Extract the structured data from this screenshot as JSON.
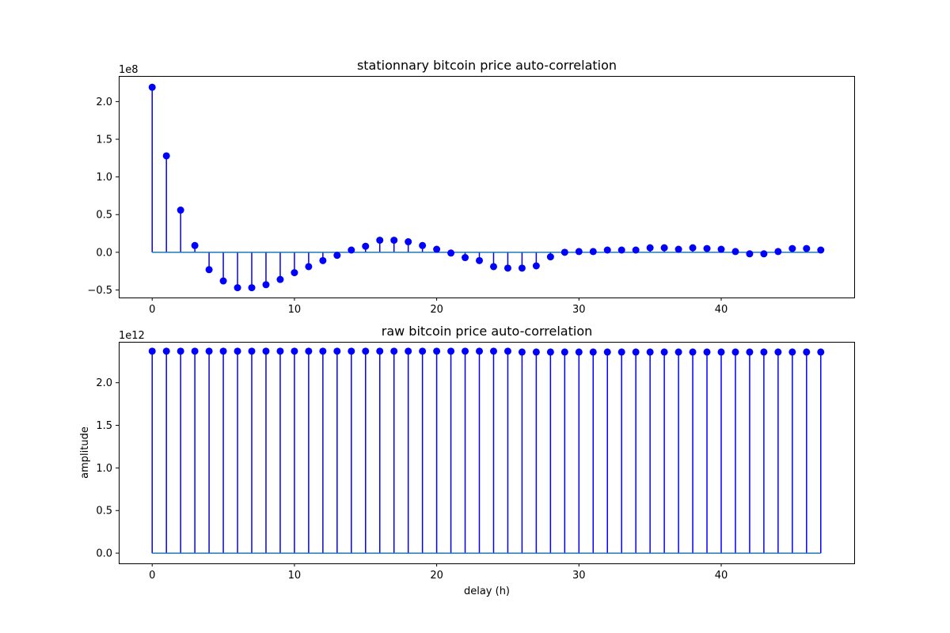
{
  "chart_data": [
    {
      "type": "stem",
      "title": "stationnary bitcoin price auto-correlation",
      "xlabel": "",
      "ylabel": "",
      "offset_text": "1e8",
      "xlim": [
        -2.35,
        49.35
      ],
      "ylim": [
        -0.6,
        2.34
      ],
      "xticks": [
        0,
        10,
        20,
        30,
        40
      ],
      "yticks": [
        -0.5,
        0.0,
        0.5,
        1.0,
        1.5,
        2.0
      ],
      "ytick_labels": [
        "−0.5",
        "0.0",
        "0.5",
        "1.0",
        "1.5",
        "2.0"
      ],
      "x": [
        0,
        1,
        2,
        3,
        4,
        5,
        6,
        7,
        8,
        9,
        10,
        11,
        12,
        13,
        14,
        15,
        16,
        17,
        18,
        19,
        20,
        21,
        22,
        23,
        24,
        25,
        26,
        27,
        28,
        29,
        30,
        31,
        32,
        33,
        34,
        35,
        36,
        37,
        38,
        39,
        40,
        41,
        42,
        43,
        44,
        45,
        46,
        47
      ],
      "values": [
        2.19,
        1.28,
        0.56,
        0.09,
        -0.23,
        -0.38,
        -0.47,
        -0.47,
        -0.43,
        -0.36,
        -0.27,
        -0.19,
        -0.11,
        -0.04,
        0.03,
        0.08,
        0.16,
        0.16,
        0.14,
        0.09,
        0.04,
        -0.01,
        -0.07,
        -0.11,
        -0.19,
        -0.21,
        -0.21,
        -0.18,
        -0.06,
        0.0,
        0.01,
        0.01,
        0.03,
        0.03,
        0.03,
        0.06,
        0.06,
        0.04,
        0.06,
        0.05,
        0.04,
        0.01,
        -0.02,
        -0.02,
        0.01,
        0.05,
        0.05,
        0.03
      ],
      "stem_color": "#0000ff",
      "marker_color": "#0000ff",
      "baseline_color": "#1f77b4",
      "grid": false
    },
    {
      "type": "stem",
      "title": "raw bitcoin price auto-correlation",
      "xlabel": "delay (h)",
      "ylabel": "amplitude",
      "offset_text": "1e12",
      "xlim": [
        -2.35,
        49.35
      ],
      "ylim": [
        -0.12,
        2.48
      ],
      "xticks": [
        0,
        10,
        20,
        30,
        40
      ],
      "yticks": [
        0.0,
        0.5,
        1.0,
        1.5,
        2.0
      ],
      "ytick_labels": [
        "0.0",
        "0.5",
        "1.0",
        "1.5",
        "2.0"
      ],
      "x": [
        0,
        1,
        2,
        3,
        4,
        5,
        6,
        7,
        8,
        9,
        10,
        11,
        12,
        13,
        14,
        15,
        16,
        17,
        18,
        19,
        20,
        21,
        22,
        23,
        24,
        25,
        26,
        27,
        28,
        29,
        30,
        31,
        32,
        33,
        34,
        35,
        36,
        37,
        38,
        39,
        40,
        41,
        42,
        43,
        44,
        45,
        46,
        47
      ],
      "values": [
        2.37,
        2.37,
        2.37,
        2.37,
        2.37,
        2.37,
        2.37,
        2.37,
        2.37,
        2.37,
        2.37,
        2.37,
        2.37,
        2.37,
        2.37,
        2.37,
        2.37,
        2.37,
        2.37,
        2.37,
        2.37,
        2.37,
        2.37,
        2.37,
        2.37,
        2.37,
        2.36,
        2.36,
        2.36,
        2.36,
        2.36,
        2.36,
        2.36,
        2.36,
        2.36,
        2.36,
        2.36,
        2.36,
        2.36,
        2.36,
        2.36,
        2.36,
        2.36,
        2.36,
        2.36,
        2.36,
        2.36,
        2.36
      ],
      "stem_color": "#0000ff",
      "marker_color": "#0000ff",
      "baseline_color": "#1f77b4",
      "grid": false
    }
  ]
}
